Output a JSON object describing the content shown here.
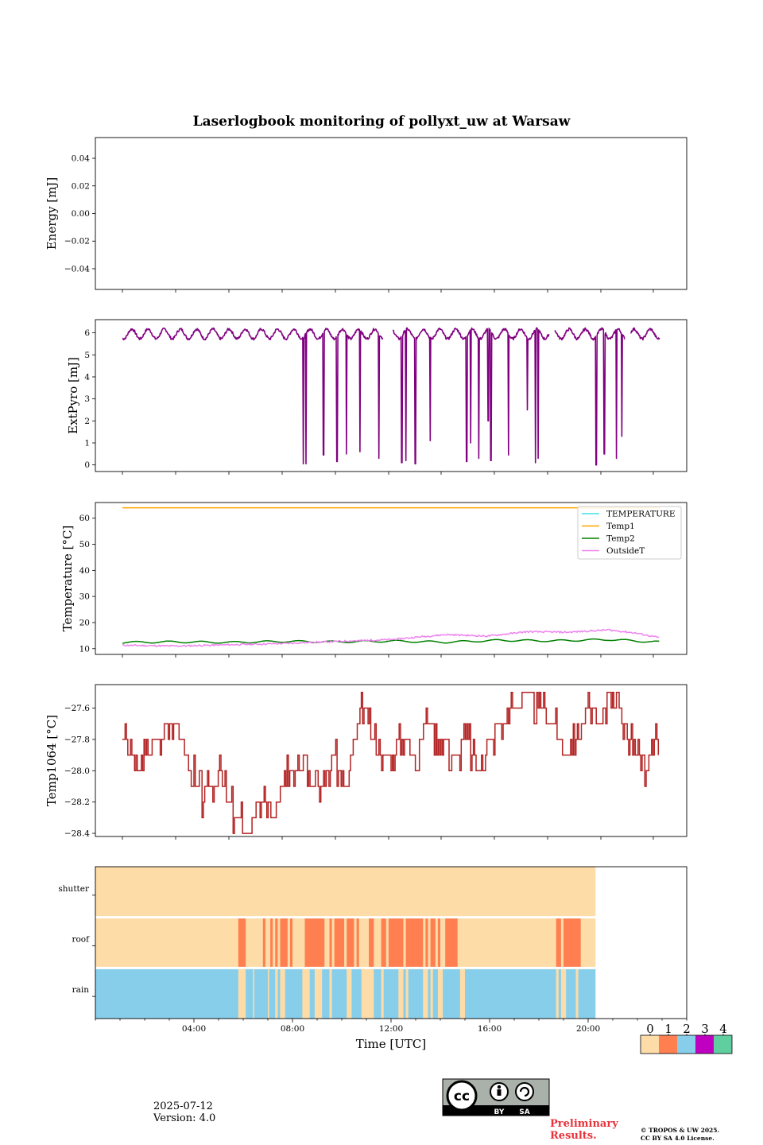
{
  "chart_data": [
    {
      "type": "line",
      "title": "Laserlogbook monitoring of pollyxt_uw at Warsaw",
      "ylabel": "Energy [mJ]",
      "ylim": [
        -0.055,
        0.055
      ],
      "yticks": [
        -0.04,
        -0.02,
        0.0,
        0.02,
        0.04
      ],
      "ytick_labels": [
        "−0.04",
        "−0.02",
        "0.00",
        "0.02",
        "0.04"
      ],
      "series": []
    },
    {
      "type": "line",
      "ylabel": "ExtPyro [mJ]",
      "ylim": [
        -0.3,
        6.6
      ],
      "yticks": [
        0,
        1,
        2,
        3,
        4,
        5,
        6
      ],
      "ytick_labels": [
        "0",
        "1",
        "2",
        "3",
        "4",
        "5",
        "6"
      ],
      "color": "#800080",
      "x_range_hours": [
        1.0,
        20.9
      ],
      "baseline": [
        [
          1.0,
          5.8
        ],
        [
          1.5,
          6.2
        ],
        [
          2.1,
          5.7
        ],
        [
          2.6,
          6.1
        ],
        [
          3.2,
          5.8
        ],
        [
          3.7,
          6.2
        ],
        [
          4.3,
          6.0
        ],
        [
          4.8,
          6.2
        ],
        [
          5.4,
          6.0
        ],
        [
          6.0,
          6.2
        ],
        [
          6.6,
          5.9
        ],
        [
          7.2,
          6.2
        ],
        [
          7.6,
          5.7
        ]
      ],
      "gaps_hours": [
        [
          10.65,
          11.0
        ],
        [
          16.8,
          17.0
        ],
        [
          19.6,
          19.8
        ]
      ],
      "dips": [
        [
          7.7,
          0.05
        ],
        [
          7.8,
          0.05
        ],
        [
          8.45,
          0.45
        ],
        [
          8.95,
          0.15
        ],
        [
          9.3,
          0.5
        ],
        [
          9.8,
          0.6
        ],
        [
          10.5,
          0.3
        ],
        [
          10.7,
          4.4
        ],
        [
          11.35,
          0.1
        ],
        [
          11.5,
          0.2
        ],
        [
          11.85,
          0.05
        ],
        [
          12.4,
          1.1
        ],
        [
          13.75,
          0.15
        ],
        [
          13.9,
          1.0
        ],
        [
          14.2,
          0.3
        ],
        [
          14.55,
          2.0
        ],
        [
          14.65,
          0.2
        ],
        [
          15.3,
          0.45
        ],
        [
          16.0,
          2.5
        ],
        [
          16.3,
          0.1
        ],
        [
          16.4,
          0.3
        ],
        [
          18.55,
          0.0
        ],
        [
          18.85,
          0.5
        ],
        [
          19.3,
          0.3
        ],
        [
          19.5,
          1.3
        ]
      ]
    },
    {
      "type": "line",
      "ylabel": "Temperature [°C]",
      "ylim": [
        7.8,
        66.0
      ],
      "yticks": [
        10,
        20,
        30,
        40,
        50,
        60
      ],
      "ytick_labels": [
        "10",
        "20",
        "30",
        "40",
        "50",
        "60"
      ],
      "legend_position": "top-right",
      "series": [
        {
          "name": "TEMPERATURE",
          "color": "#40e0e8",
          "points": []
        },
        {
          "name": "Temp1",
          "color": "#ffa500",
          "points": [
            [
              1.0,
              64.0
            ],
            [
              20.9,
              64.0
            ]
          ]
        },
        {
          "name": "Temp2",
          "color": "#008000",
          "points": [
            [
              1.0,
              12.4
            ],
            [
              3.0,
              12.6
            ],
            [
              5.0,
              12.4
            ],
            [
              7.0,
              12.8
            ],
            [
              9.0,
              12.6
            ],
            [
              11.0,
              12.9
            ],
            [
              13.0,
              12.5
            ],
            [
              15.0,
              13.2
            ],
            [
              17.0,
              13.0
            ],
            [
              19.0,
              13.5
            ],
            [
              20.9,
              12.5
            ]
          ]
        },
        {
          "name": "OutsideT",
          "color": "#ee82ee",
          "points": [
            [
              1.0,
              11.3
            ],
            [
              3.0,
              11.0
            ],
            [
              5.0,
              11.5
            ],
            [
              7.0,
              12.0
            ],
            [
              9.0,
              12.8
            ],
            [
              11.0,
              13.5
            ],
            [
              12.0,
              14.5
            ],
            [
              13.0,
              15.4
            ],
            [
              14.5,
              14.8
            ],
            [
              16.0,
              16.5
            ],
            [
              17.5,
              16.3
            ],
            [
              19.0,
              17.2
            ],
            [
              20.0,
              16.0
            ],
            [
              20.9,
              14.2
            ]
          ]
        }
      ]
    },
    {
      "type": "line",
      "ylabel": "Temp1064 [°C]",
      "ylim": [
        -28.42,
        -27.45
      ],
      "yticks": [
        -28.4,
        -28.2,
        -28.0,
        -27.8,
        -27.6
      ],
      "ytick_labels": [
        "−28.4",
        "−28.2",
        "−28.0",
        "−27.8",
        "−27.6"
      ],
      "color": "#b22222",
      "points": [
        [
          1.0,
          -27.8
        ],
        [
          1.3,
          -27.9
        ],
        [
          1.5,
          -28.0
        ],
        [
          1.9,
          -27.9
        ],
        [
          2.3,
          -27.8
        ],
        [
          2.8,
          -27.7
        ],
        [
          3.1,
          -27.8
        ],
        [
          3.5,
          -28.0
        ],
        [
          3.8,
          -28.1
        ],
        [
          4.0,
          -28.2
        ],
        [
          4.3,
          -28.1
        ],
        [
          4.6,
          -28.0
        ],
        [
          4.9,
          -28.2
        ],
        [
          5.2,
          -28.3
        ],
        [
          5.6,
          -28.4
        ],
        [
          5.9,
          -28.3
        ],
        [
          6.3,
          -28.2
        ],
        [
          6.6,
          -28.3
        ],
        [
          6.9,
          -28.1
        ],
        [
          7.3,
          -28.0
        ],
        [
          7.6,
          -27.9
        ],
        [
          8.0,
          -28.0
        ],
        [
          8.4,
          -28.1
        ],
        [
          8.8,
          -27.9
        ],
        [
          9.3,
          -28.1
        ],
        [
          9.6,
          -27.8
        ],
        [
          9.9,
          -27.6
        ],
        [
          10.3,
          -27.8
        ],
        [
          10.8,
          -27.9
        ],
        [
          11.4,
          -27.8
        ],
        [
          11.9,
          -27.9
        ],
        [
          12.3,
          -27.7
        ],
        [
          12.8,
          -27.8
        ],
        [
          13.3,
          -27.9
        ],
        [
          13.8,
          -27.8
        ],
        [
          14.2,
          -28.0
        ],
        [
          14.6,
          -27.8
        ],
        [
          15.0,
          -27.7
        ],
        [
          15.5,
          -27.6
        ],
        [
          16.0,
          -27.5
        ],
        [
          16.5,
          -27.6
        ],
        [
          17.0,
          -27.7
        ],
        [
          17.4,
          -27.9
        ],
        [
          17.8,
          -27.8
        ],
        [
          18.3,
          -27.6
        ],
        [
          18.7,
          -27.7
        ],
        [
          19.0,
          -27.5
        ],
        [
          19.4,
          -27.6
        ],
        [
          19.8,
          -27.8
        ],
        [
          20.2,
          -27.9
        ],
        [
          20.5,
          -28.0
        ],
        [
          20.7,
          -27.7
        ],
        [
          20.9,
          -27.9
        ]
      ]
    },
    {
      "type": "heatmap",
      "rows": [
        "shutter",
        "roof",
        "rain"
      ],
      "xlabel": "Time [UTC]",
      "xticks": [
        "04:00",
        "08:00",
        "12:00",
        "16:00",
        "20:00"
      ],
      "xticks_hours": [
        4,
        8,
        12,
        16,
        20
      ],
      "xlim_hours": [
        0,
        24
      ],
      "data_end_hours": 20.3,
      "colorbar": {
        "ticks": [
          "0",
          "1",
          "2",
          "3",
          "4"
        ],
        "colors": [
          "#fddca8",
          "#ff7f50",
          "#87ceeb",
          "#c000c0",
          "#5fcfa0"
        ]
      },
      "shutter": [
        [
          0.0,
          20.3,
          0
        ]
      ],
      "roof_orange_intervals": [
        [
          5.8,
          6.1
        ],
        [
          6.8,
          6.9
        ],
        [
          7.1,
          7.2
        ],
        [
          7.3,
          7.4
        ],
        [
          7.5,
          7.8
        ],
        [
          7.9,
          8.0
        ],
        [
          8.5,
          9.3
        ],
        [
          9.5,
          9.6
        ],
        [
          9.7,
          10.1
        ],
        [
          10.2,
          10.5
        ],
        [
          10.6,
          10.7
        ],
        [
          11.1,
          11.3
        ],
        [
          11.6,
          11.8
        ],
        [
          11.9,
          12.5
        ],
        [
          12.6,
          13.3
        ],
        [
          13.4,
          13.5
        ],
        [
          13.6,
          13.8
        ],
        [
          13.9,
          14.0
        ],
        [
          14.2,
          14.7
        ],
        [
          18.7,
          18.9
        ],
        [
          19.0,
          19.7
        ]
      ],
      "rain_beige_intervals": [
        [
          5.8,
          6.1
        ],
        [
          6.4,
          6.45
        ],
        [
          7.0,
          7.05
        ],
        [
          7.3,
          7.4
        ],
        [
          7.5,
          7.7
        ],
        [
          8.4,
          8.7
        ],
        [
          8.9,
          9.2
        ],
        [
          9.5,
          9.6
        ],
        [
          10.2,
          10.4
        ],
        [
          10.8,
          11.3
        ],
        [
          11.6,
          11.7
        ],
        [
          12.3,
          12.5
        ],
        [
          12.6,
          12.7
        ],
        [
          13.3,
          13.5
        ],
        [
          13.6,
          13.7
        ],
        [
          13.9,
          14.1
        ],
        [
          14.8,
          15.0
        ],
        [
          18.7,
          18.8
        ],
        [
          18.9,
          19.1
        ],
        [
          19.5,
          19.6
        ]
      ]
    }
  ],
  "footer": {
    "date": "2025-07-12",
    "version": "Version: 4.0",
    "preliminary_1": "Preliminary",
    "preliminary_2": "Results.",
    "copyright_1": "© TROPOS & UW 2025.",
    "copyright_2": "CC BY SA 4.0 License.",
    "license_by": "BY",
    "license_sa": "SA",
    "license_cc": "cc"
  }
}
